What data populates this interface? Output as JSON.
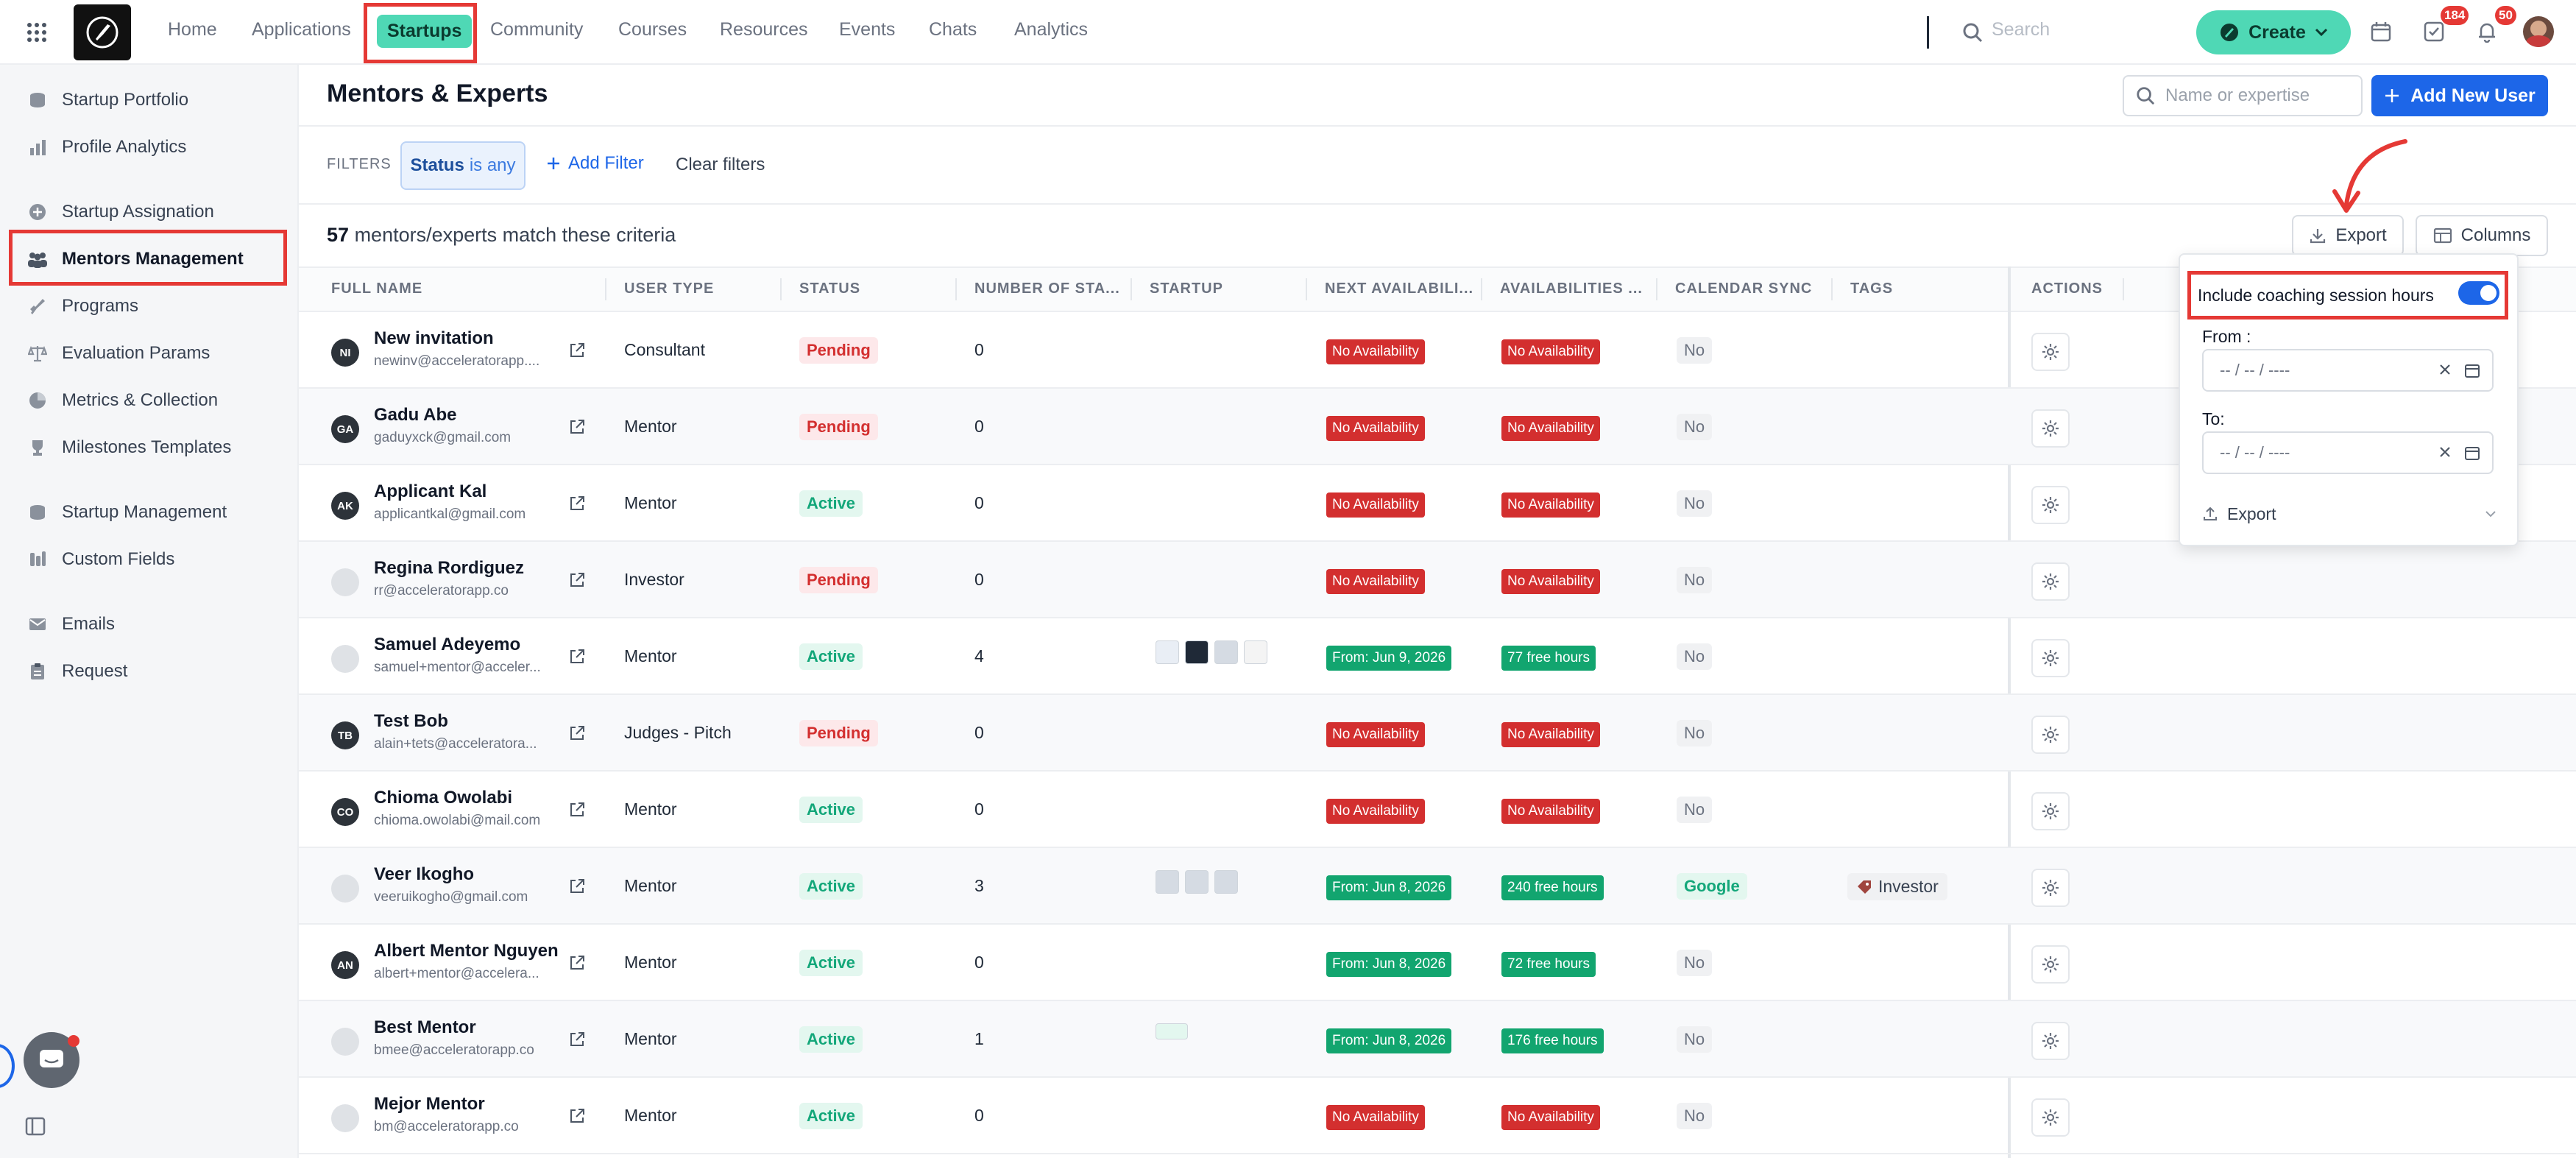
{
  "nav": {
    "links": [
      "Home",
      "Applications",
      "Startups",
      "Community",
      "Courses",
      "Resources",
      "Events",
      "Chats",
      "Analytics"
    ],
    "search_placeholder": "Search",
    "create_label": "Create",
    "tasks_badge": "184",
    "notifications_badge": "50"
  },
  "sidebar": {
    "items": [
      {
        "label": "Startup Portfolio",
        "icon": "coins-icon"
      },
      {
        "label": "Profile Analytics",
        "icon": "bar-chart-icon"
      },
      {
        "label": "Startup Assignation",
        "icon": "plus-circle-icon"
      },
      {
        "label": "Mentors Management",
        "icon": "users-icon"
      },
      {
        "label": "Programs",
        "icon": "rocket-icon"
      },
      {
        "label": "Evaluation Params",
        "icon": "scale-icon"
      },
      {
        "label": "Metrics & Collection",
        "icon": "pie-chart-icon"
      },
      {
        "label": "Milestones Templates",
        "icon": "trophy-icon"
      },
      {
        "label": "Startup Management",
        "icon": "coins-icon"
      },
      {
        "label": "Custom Fields",
        "icon": "sliders-icon"
      },
      {
        "label": "Emails",
        "icon": "mail-icon"
      },
      {
        "label": "Request",
        "icon": "clipboard-icon"
      }
    ]
  },
  "header": {
    "title": "Mentors & Experts",
    "search_placeholder": "Name or expertise",
    "add_user_label": "Add New User"
  },
  "filters": {
    "label": "FILTERS",
    "status_key": "Status",
    "status_value": "is any",
    "add_filter_label": "Add Filter",
    "clear_label": "Clear filters"
  },
  "results": {
    "count": "57",
    "text": "mentors/experts match these criteria",
    "export_label": "Export",
    "columns_label": "Columns"
  },
  "table": {
    "headers": [
      "FULL NAME",
      "USER TYPE",
      "STATUS",
      "NUMBER OF STA...",
      "STARTUP",
      "NEXT AVAILABILI...",
      "AVAILABILITIES ...",
      "CALENDAR SYNC",
      "TAGS",
      "ACTIONS"
    ],
    "rows": [
      {
        "initials": "NI",
        "name": "New invitation",
        "email": "newinv@acceleratorapp....",
        "type": "Consultant",
        "status": "Pending",
        "number": "0",
        "next": "No Availability",
        "avail": "No Availability",
        "sync": "No"
      },
      {
        "initials": "GA",
        "name": "Gadu Abe",
        "email": "gaduyxck@gmail.com",
        "type": "Mentor",
        "status": "Pending",
        "number": "0",
        "next": "No Availability",
        "avail": "No Availability",
        "sync": "No"
      },
      {
        "initials": "AK",
        "name": "Applicant Kal",
        "email": "applicantkal@gmail.com",
        "type": "Mentor",
        "status": "Active",
        "number": "0",
        "next": "No Availability",
        "avail": "No Availability",
        "sync": "No"
      },
      {
        "initials": "",
        "name": "Regina Rordiguez",
        "email": "rr@acceleratorapp.co",
        "type": "Investor",
        "status": "Pending",
        "number": "0",
        "next": "No Availability",
        "avail": "No Availability",
        "sync": "No"
      },
      {
        "initials": "",
        "name": "Samuel Adeyemo",
        "email": "samuel+mentor@acceler...",
        "type": "Mentor",
        "status": "Active",
        "number": "4",
        "next": "From: Jun 9, 2026",
        "avail": "77 free hours",
        "sync": "No"
      },
      {
        "initials": "TB",
        "name": "Test Bob",
        "email": "alain+tets@acceleratora...",
        "type": "Judges - Pitch",
        "status": "Pending",
        "number": "0",
        "next": "No Availability",
        "avail": "No Availability",
        "sync": "No"
      },
      {
        "initials": "CO",
        "name": "Chioma Owolabi",
        "email": "chioma.owolabi@mail.com",
        "type": "Mentor",
        "status": "Active",
        "number": "0",
        "next": "No Availability",
        "avail": "No Availability",
        "sync": "No"
      },
      {
        "initials": "",
        "name": "Veer Ikogho",
        "email": "veeruikogho@gmail.com",
        "type": "Mentor",
        "status": "Active",
        "number": "3",
        "next": "From: Jun 8, 2026",
        "avail": "240 free hours",
        "sync": "Google",
        "tag": "Investor"
      },
      {
        "initials": "AN",
        "name": "Albert Mentor Nguyen",
        "email": "albert+mentor@accelera...",
        "type": "Mentor",
        "status": "Active",
        "number": "0",
        "next": "From: Jun 8, 2026",
        "avail": "72 free hours",
        "sync": "No"
      },
      {
        "initials": "",
        "name": "Best Mentor",
        "email": "bmee@acceleratorapp.co",
        "type": "Mentor",
        "status": "Active",
        "number": "1",
        "next": "From: Jun 8, 2026",
        "avail": "176 free hours",
        "sync": "No"
      },
      {
        "initials": "",
        "name": "Mejor Mentor",
        "email": "bm@acceleratorapp.co",
        "type": "Mentor",
        "status": "Active",
        "number": "0",
        "next": "No Availability",
        "avail": "No Availability",
        "sync": "No"
      }
    ]
  },
  "popover": {
    "toggle_label": "Include coaching session hours",
    "from_label": "From :",
    "to_label": "To:",
    "date_placeholder": "-- / -- / ----",
    "export_label": "Export"
  },
  "colors": {
    "accent_green": "#4fd8b5",
    "primary_blue": "#1d66e8",
    "danger_red": "#d32f2f",
    "success_green": "#12a56f",
    "annotation_red": "#e53935"
  }
}
